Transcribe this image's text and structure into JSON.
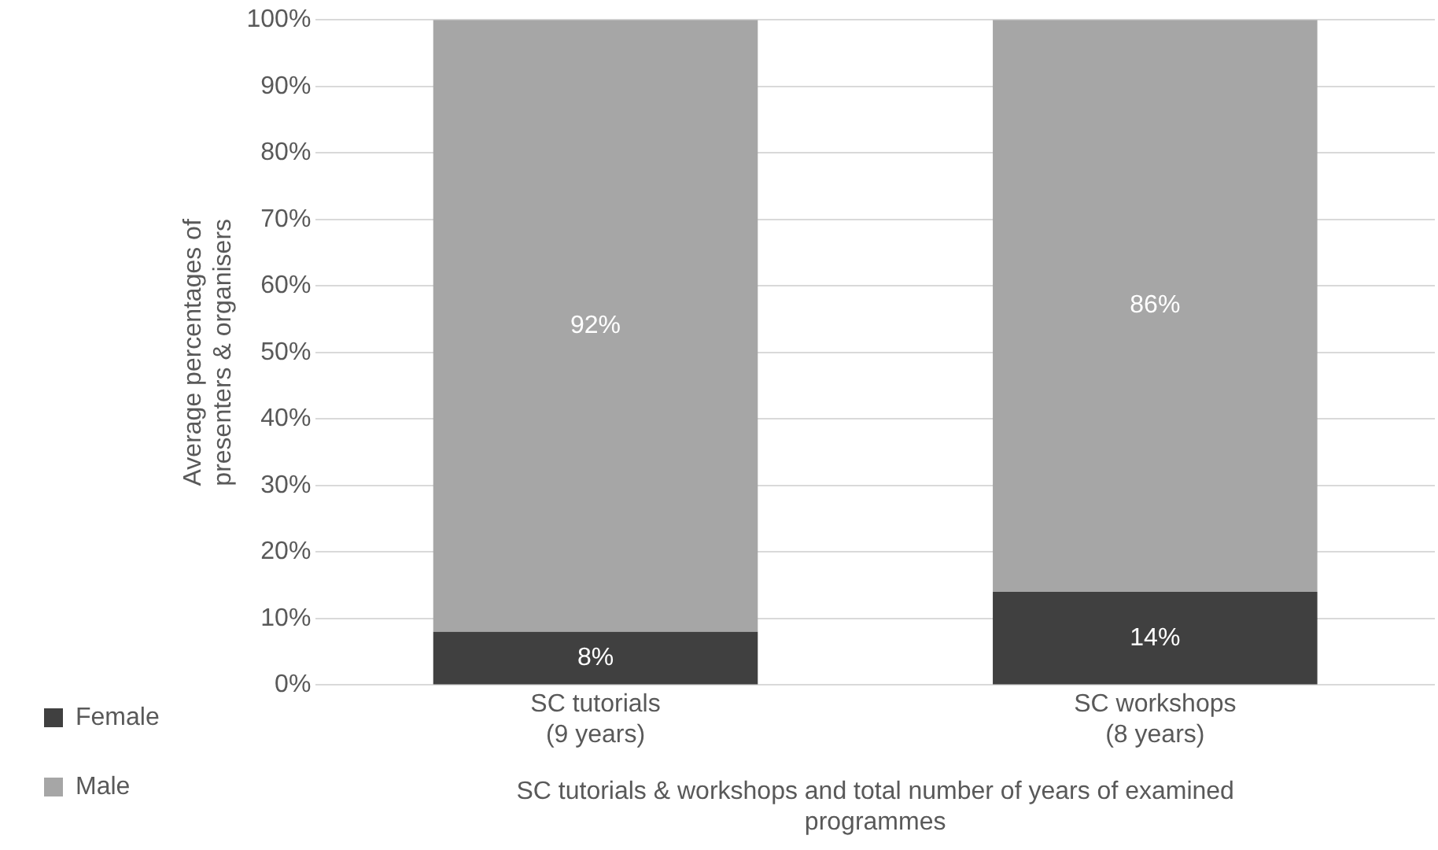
{
  "chart_data": {
    "type": "bar",
    "stacked": true,
    "categories": [
      "SC tutorials (9 years)",
      "SC workshops (8 years)"
    ],
    "series": [
      {
        "name": "Female",
        "color": "#404040",
        "values": [
          8,
          14
        ],
        "value_labels": [
          "8%",
          "14%"
        ]
      },
      {
        "name": "Male",
        "color": "#a6a6a6",
        "values": [
          92,
          86
        ],
        "value_labels": [
          "92%",
          "86%"
        ]
      }
    ],
    "xlabel": "SC tutorials & workshops and total number of years of examined programmes",
    "ylabel": "Average percentages of presenters & organisers",
    "ylim": [
      0,
      100
    ],
    "yticks": [
      {
        "value": 0,
        "label": "0%"
      },
      {
        "value": 10,
        "label": "10%"
      },
      {
        "value": 20,
        "label": "20%"
      },
      {
        "value": 30,
        "label": "30%"
      },
      {
        "value": 40,
        "label": "40%"
      },
      {
        "value": 50,
        "label": "50%"
      },
      {
        "value": 60,
        "label": "60%"
      },
      {
        "value": 70,
        "label": "70%"
      },
      {
        "value": 80,
        "label": "80%"
      },
      {
        "value": 90,
        "label": "90%"
      },
      {
        "value": 100,
        "label": "100%"
      }
    ],
    "grid": "y",
    "legend": "bottom left"
  }
}
